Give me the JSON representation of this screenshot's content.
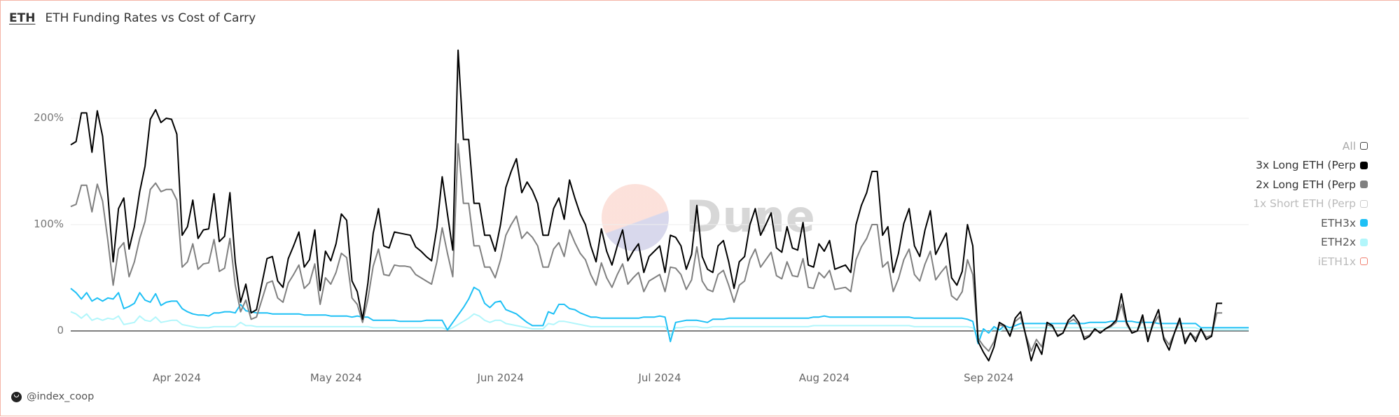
{
  "header": {
    "tag": "ETH",
    "title": "ETH Funding Rates vs Cost of Carry"
  },
  "footer": {
    "author": "@index_coop",
    "author_icon": "index-coop-logo-icon"
  },
  "watermark": {
    "text": "Dune"
  },
  "legend": {
    "items": [
      {
        "label": "All",
        "color": "#ffffff",
        "border": "#444444",
        "text_color": "#aaaaaa",
        "active": false
      },
      {
        "label": "3x Long ETH (Perp",
        "color": "#000000",
        "border": "#000000",
        "text_color": "#333333",
        "active": true
      },
      {
        "label": "2x Long ETH (Perp",
        "color": "#808080",
        "border": "#808080",
        "text_color": "#333333",
        "active": true
      },
      {
        "label": "1x Short ETH (Perp",
        "color": "#ffffff",
        "border": "#cccccc",
        "text_color": "#bbbbbb",
        "active": false
      },
      {
        "label": "ETH3x",
        "color": "#1ec0f5",
        "border": "#1ec0f5",
        "text_color": "#555555",
        "active": true
      },
      {
        "label": "ETH2x",
        "color": "#b2f6fb",
        "border": "#b2f6fb",
        "text_color": "#555555",
        "active": true
      },
      {
        "label": "iETH1x",
        "color": "#ffffff",
        "border": "#f08070",
        "text_color": "#bbbbbb",
        "active": false
      }
    ]
  },
  "chart_data": {
    "type": "line",
    "title": "ETH Funding Rates vs Cost of Carry",
    "xlabel": "",
    "ylabel": "",
    "ylim": [
      -40,
      270
    ],
    "y_ticks": [
      {
        "label": "0",
        "value": 0
      },
      {
        "label": "100%",
        "value": 100
      },
      {
        "label": "200%",
        "value": 200
      }
    ],
    "x_ticks": [
      {
        "label": "Apr 2024",
        "index": 20
      },
      {
        "label": "May 2024",
        "index": 50
      },
      {
        "label": "Jun 2024",
        "index": 81
      },
      {
        "label": "Jul 2024",
        "index": 111
      },
      {
        "label": "Aug 2024",
        "index": 142
      },
      {
        "label": "Sep 2024",
        "index": 173
      }
    ],
    "grid": true,
    "legend_position": "right",
    "x_start": "2024-03-12",
    "x_end": "2024-09-15",
    "x_step": "1 day",
    "series": [
      {
        "name": "3x Long ETH (Perp",
        "color": "#000000",
        "values": [
          175,
          178,
          205,
          205,
          168,
          207,
          183,
          128,
          65,
          115,
          125,
          77,
          98,
          131,
          155,
          199,
          208,
          196,
          200,
          199,
          185,
          90,
          98,
          123,
          87,
          95,
          96,
          129,
          84,
          89,
          130,
          65,
          27,
          44,
          17,
          20,
          44,
          68,
          70,
          47,
          41,
          68,
          80,
          93,
          60,
          67,
          95,
          38,
          75,
          66,
          82,
          110,
          104,
          47,
          37,
          11,
          45,
          92,
          115,
          80,
          78,
          93,
          92,
          91,
          90,
          79,
          75,
          70,
          66,
          97,
          145,
          110,
          76,
          264,
          180,
          180,
          120,
          120,
          90,
          90,
          75,
          100,
          135,
          150,
          162,
          130,
          140,
          132,
          120,
          90,
          90,
          115,
          125,
          105,
          142,
          125,
          110,
          100,
          80,
          65,
          96,
          75,
          62,
          80,
          95,
          66,
          75,
          82,
          55,
          70,
          75,
          80,
          55,
          90,
          88,
          80,
          58,
          72,
          118,
          70,
          58,
          55,
          80,
          85,
          65,
          40,
          65,
          70,
          100,
          115,
          90,
          100,
          111,
          78,
          74,
          98,
          78,
          76,
          102,
          62,
          60,
          82,
          75,
          85,
          58,
          60,
          62,
          55,
          100,
          118,
          130,
          150,
          150,
          90,
          98,
          55,
          73,
          101,
          115,
          80,
          70,
          95,
          113,
          72,
          82,
          92,
          50,
          43,
          56,
          100,
          80,
          -10,
          -20,
          -28,
          -15,
          8,
          5,
          -5,
          12,
          18,
          -5,
          -28,
          -12,
          -22,
          8,
          5,
          -5,
          -2,
          10,
          15,
          8,
          -8,
          -5,
          2,
          -2,
          2,
          5,
          10,
          35,
          8,
          -2,
          0,
          15,
          -10,
          8,
          20,
          -8,
          -18,
          -2,
          12,
          -12,
          -2,
          -10,
          2,
          -8,
          -5,
          26,
          26
        ]
      },
      {
        "name": "2x Long ETH (Perp",
        "color": "#808080",
        "values": [
          117,
          119,
          137,
          137,
          112,
          138,
          122,
          85,
          43,
          77,
          83,
          51,
          65,
          87,
          103,
          133,
          139,
          131,
          133,
          133,
          123,
          60,
          65,
          82,
          58,
          63,
          64,
          86,
          56,
          59,
          87,
          43,
          18,
          29,
          11,
          13,
          29,
          45,
          47,
          31,
          27,
          45,
          53,
          62,
          40,
          45,
          63,
          25,
          50,
          44,
          55,
          73,
          69,
          31,
          25,
          8,
          30,
          61,
          77,
          53,
          52,
          62,
          61,
          61,
          60,
          53,
          50,
          47,
          44,
          65,
          97,
          73,
          51,
          176,
          120,
          120,
          80,
          80,
          60,
          60,
          50,
          67,
          90,
          100,
          108,
          87,
          93,
          88,
          80,
          60,
          60,
          77,
          83,
          70,
          95,
          83,
          73,
          67,
          53,
          43,
          64,
          50,
          41,
          53,
          63,
          44,
          50,
          55,
          37,
          47,
          50,
          53,
          37,
          60,
          59,
          53,
          39,
          48,
          79,
          47,
          39,
          37,
          53,
          57,
          43,
          27,
          43,
          47,
          67,
          77,
          60,
          67,
          74,
          52,
          49,
          65,
          52,
          51,
          68,
          41,
          40,
          55,
          50,
          57,
          39,
          40,
          41,
          37,
          67,
          79,
          87,
          100,
          100,
          60,
          65,
          37,
          49,
          67,
          77,
          53,
          47,
          63,
          75,
          48,
          55,
          61,
          33,
          29,
          37,
          67,
          53,
          -7,
          -14,
          -19,
          -10,
          6,
          4,
          -4,
          9,
          13,
          -4,
          -19,
          -8,
          -15,
          6,
          4,
          -4,
          -2,
          8,
          11,
          6,
          -6,
          -4,
          2,
          -2,
          2,
          4,
          8,
          25,
          6,
          -2,
          0,
          11,
          -7,
          6,
          14,
          -6,
          -13,
          -2,
          9,
          -9,
          -2,
          -7,
          2,
          -6,
          -4,
          17,
          17
        ]
      },
      {
        "name": "ETH3x",
        "color": "#1ec0f5",
        "values": [
          40,
          36,
          30,
          36,
          28,
          31,
          28,
          31,
          30,
          36,
          21,
          23,
          26,
          36,
          29,
          27,
          35,
          24,
          27,
          28,
          28,
          21,
          18,
          16,
          15,
          15,
          14,
          17,
          17,
          18,
          18,
          17,
          25,
          19,
          18,
          17,
          17,
          17,
          16,
          16,
          16,
          16,
          16,
          16,
          15,
          15,
          15,
          15,
          15,
          14,
          14,
          14,
          14,
          13,
          14,
          13,
          13,
          10,
          10,
          10,
          10,
          10,
          9,
          9,
          9,
          9,
          9,
          10,
          10,
          10,
          10,
          1,
          8,
          15,
          22,
          30,
          41,
          38,
          26,
          22,
          27,
          28,
          20,
          18,
          16,
          12,
          8,
          5,
          5,
          5,
          18,
          16,
          25,
          25,
          21,
          20,
          17,
          15,
          13,
          13,
          12,
          12,
          12,
          12,
          12,
          12,
          12,
          12,
          13,
          13,
          13,
          14,
          13,
          -10,
          8,
          9,
          10,
          10,
          10,
          9,
          8,
          11,
          11,
          11,
          12,
          12,
          12,
          12,
          12,
          12,
          12,
          12,
          12,
          12,
          12,
          12,
          12,
          12,
          12,
          12,
          13,
          13,
          14,
          13,
          13,
          13,
          13,
          13,
          13,
          13,
          13,
          13,
          13,
          13,
          13,
          13,
          13,
          13,
          13,
          12,
          12,
          12,
          12,
          12,
          12,
          12,
          12,
          12,
          12,
          11,
          9,
          -12,
          2,
          -2,
          4,
          1,
          5,
          3,
          5,
          7,
          7,
          7,
          7,
          7,
          7,
          7,
          7,
          7,
          7,
          7,
          7,
          7,
          8,
          8,
          8,
          8,
          9,
          9,
          9,
          9,
          9,
          8,
          8,
          8,
          8,
          7,
          7,
          7,
          7,
          7,
          7,
          7,
          7,
          3,
          3,
          3,
          3,
          3,
          3,
          3,
          3,
          3,
          3
        ]
      },
      {
        "name": "ETH2x",
        "color": "#b2f6fb",
        "values": [
          18,
          16,
          12,
          16,
          10,
          12,
          10,
          12,
          11,
          14,
          6,
          7,
          8,
          14,
          10,
          9,
          13,
          8,
          9,
          10,
          10,
          6,
          5,
          4,
          3,
          3,
          3,
          4,
          4,
          4,
          4,
          4,
          8,
          5,
          5,
          4,
          4,
          4,
          4,
          4,
          4,
          4,
          4,
          4,
          4,
          4,
          4,
          4,
          4,
          4,
          4,
          4,
          4,
          4,
          4,
          4,
          4,
          3,
          3,
          3,
          3,
          3,
          3,
          3,
          3,
          3,
          3,
          3,
          3,
          3,
          3,
          1,
          3,
          6,
          9,
          12,
          16,
          14,
          10,
          8,
          10,
          10,
          7,
          6,
          5,
          4,
          3,
          2,
          2,
          2,
          7,
          6,
          9,
          9,
          8,
          7,
          6,
          5,
          4,
          4,
          4,
          4,
          4,
          4,
          4,
          4,
          4,
          4,
          4,
          4,
          4,
          4,
          4,
          -4,
          3,
          3,
          4,
          4,
          4,
          3,
          3,
          4,
          4,
          4,
          4,
          4,
          4,
          4,
          4,
          4,
          4,
          4,
          4,
          4,
          4,
          4,
          4,
          4,
          4,
          4,
          5,
          5,
          5,
          5,
          5,
          5,
          5,
          5,
          5,
          5,
          5,
          5,
          5,
          5,
          5,
          5,
          5,
          5,
          5,
          4,
          4,
          4,
          4,
          4,
          4,
          4,
          4,
          4,
          4,
          4,
          3,
          -6,
          1,
          -1,
          2,
          0,
          2,
          1,
          2,
          3,
          3,
          3,
          3,
          3,
          3,
          3,
          3,
          3,
          3,
          3,
          3,
          3,
          3,
          3,
          3,
          3,
          3,
          3,
          3,
          3,
          3,
          3,
          3,
          3,
          3,
          3,
          3,
          3,
          3,
          3,
          3,
          3,
          3,
          1,
          1,
          1,
          1,
          1,
          1,
          1,
          1,
          1,
          1
        ]
      }
    ]
  }
}
